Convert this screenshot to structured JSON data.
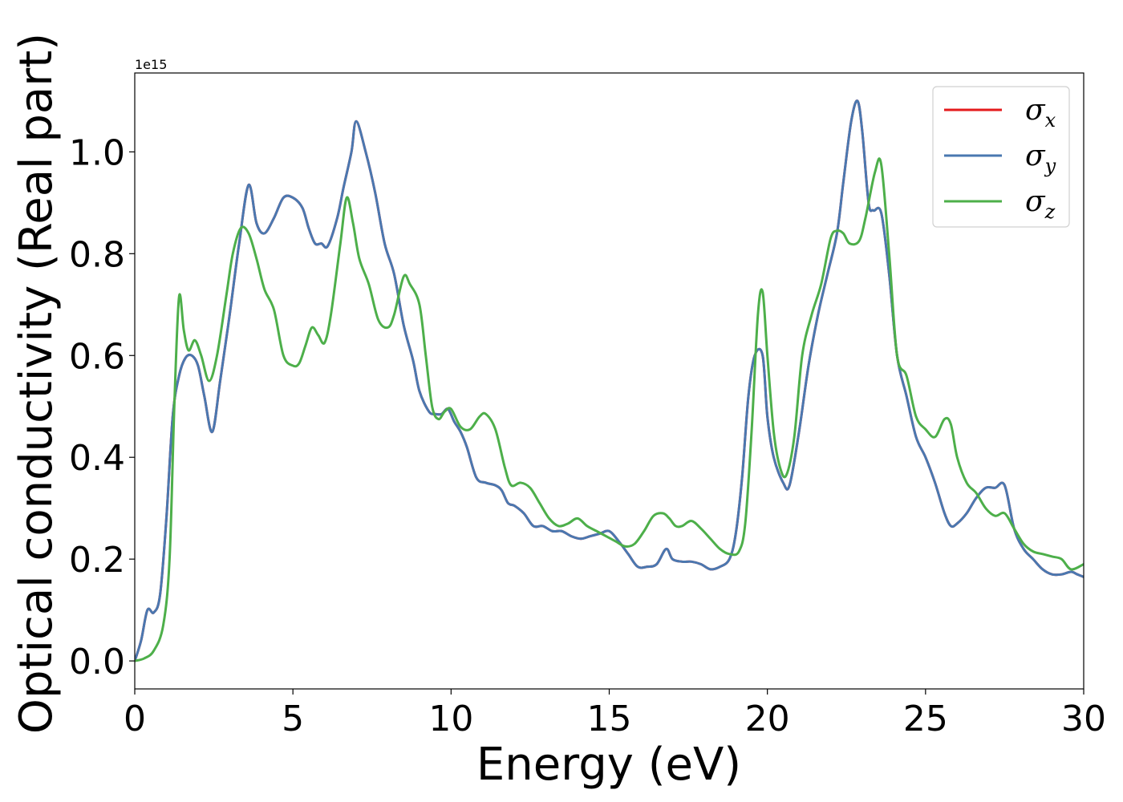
{
  "chart_data": {
    "type": "line",
    "xlabel": "Energy (eV)",
    "ylabel": "Optical conductivity (Real part)",
    "y_offset_label": "1e15",
    "xlim": [
      0,
      30
    ],
    "ylim": [
      -0.055,
      1.155
    ],
    "y_scale_factor": "1e15",
    "x_ticks": [
      0,
      5,
      10,
      15,
      20,
      25,
      30
    ],
    "x_tick_labels": [
      "0",
      "5",
      "10",
      "15",
      "20",
      "25",
      "30"
    ],
    "y_ticks": [
      0.0,
      0.2,
      0.4,
      0.6,
      0.8,
      1.0
    ],
    "y_tick_labels": [
      "0.0",
      "0.2",
      "0.4",
      "0.6",
      "0.8",
      "1.0"
    ],
    "grid": false,
    "legend_position": "top-right",
    "series": [
      {
        "name": "σx",
        "legend_base": "σ",
        "legend_sub": "x",
        "color": "#e41a1c",
        "x": [
          0,
          0.2,
          0.4,
          0.6,
          0.8,
          1.0,
          1.2,
          1.4,
          1.6,
          1.8,
          2.0,
          2.2,
          2.45,
          2.7,
          3.0,
          3.3,
          3.6,
          3.85,
          4.1,
          4.4,
          4.7,
          5.0,
          5.3,
          5.5,
          5.7,
          5.9,
          6.1,
          6.4,
          6.6,
          6.85,
          7.0,
          7.3,
          7.6,
          7.9,
          8.2,
          8.5,
          8.8,
          9.0,
          9.3,
          9.5,
          9.7,
          9.9,
          10.1,
          10.3,
          10.5,
          10.8,
          11.1,
          11.4,
          11.6,
          11.8,
          12.0,
          12.3,
          12.6,
          12.9,
          13.2,
          13.5,
          13.8,
          14.1,
          14.4,
          14.7,
          15.0,
          15.3,
          15.6,
          15.9,
          16.2,
          16.5,
          16.8,
          17.0,
          17.3,
          17.6,
          17.9,
          18.2,
          18.5,
          18.8,
          19.0,
          19.2,
          19.4,
          19.6,
          19.85,
          20.0,
          20.2,
          20.5,
          20.7,
          21.0,
          21.3,
          21.6,
          21.9,
          22.2,
          22.4,
          22.65,
          22.85,
          23.0,
          23.2,
          23.35,
          23.6,
          23.85,
          24.1,
          24.4,
          24.7,
          25.0,
          25.3,
          25.6,
          25.8,
          26.0,
          26.3,
          26.6,
          26.9,
          27.2,
          27.5,
          27.8,
          28.1,
          28.4,
          28.7,
          29.0,
          29.3,
          29.6,
          29.8,
          30.0
        ],
        "values": [
          0.0,
          0.04,
          0.1,
          0.095,
          0.13,
          0.28,
          0.48,
          0.56,
          0.595,
          0.6,
          0.58,
          0.52,
          0.45,
          0.55,
          0.68,
          0.82,
          0.935,
          0.86,
          0.84,
          0.87,
          0.91,
          0.91,
          0.89,
          0.85,
          0.82,
          0.82,
          0.815,
          0.87,
          0.93,
          1.0,
          1.06,
          1.0,
          0.92,
          0.82,
          0.76,
          0.66,
          0.59,
          0.53,
          0.49,
          0.485,
          0.485,
          0.495,
          0.47,
          0.45,
          0.42,
          0.36,
          0.35,
          0.345,
          0.335,
          0.31,
          0.305,
          0.29,
          0.265,
          0.265,
          0.255,
          0.255,
          0.245,
          0.24,
          0.245,
          0.25,
          0.255,
          0.235,
          0.21,
          0.185,
          0.185,
          0.19,
          0.22,
          0.2,
          0.195,
          0.195,
          0.19,
          0.18,
          0.185,
          0.2,
          0.25,
          0.36,
          0.52,
          0.6,
          0.6,
          0.48,
          0.4,
          0.35,
          0.345,
          0.45,
          0.58,
          0.68,
          0.76,
          0.84,
          0.94,
          1.06,
          1.1,
          1.04,
          0.9,
          0.885,
          0.88,
          0.76,
          0.6,
          0.52,
          0.44,
          0.4,
          0.35,
          0.29,
          0.265,
          0.27,
          0.29,
          0.32,
          0.34,
          0.34,
          0.345,
          0.26,
          0.22,
          0.2,
          0.18,
          0.17,
          0.17,
          0.175,
          0.17,
          0.165
        ]
      },
      {
        "name": "σy",
        "legend_base": "σ",
        "legend_sub": "y",
        "color": "#4a78b0",
        "x": [
          0,
          0.2,
          0.4,
          0.6,
          0.8,
          1.0,
          1.2,
          1.4,
          1.6,
          1.8,
          2.0,
          2.2,
          2.45,
          2.7,
          3.0,
          3.3,
          3.6,
          3.85,
          4.1,
          4.4,
          4.7,
          5.0,
          5.3,
          5.5,
          5.7,
          5.9,
          6.1,
          6.4,
          6.6,
          6.85,
          7.0,
          7.3,
          7.6,
          7.9,
          8.2,
          8.5,
          8.8,
          9.0,
          9.3,
          9.5,
          9.7,
          9.9,
          10.1,
          10.3,
          10.5,
          10.8,
          11.1,
          11.4,
          11.6,
          11.8,
          12.0,
          12.3,
          12.6,
          12.9,
          13.2,
          13.5,
          13.8,
          14.1,
          14.4,
          14.7,
          15.0,
          15.3,
          15.6,
          15.9,
          16.2,
          16.5,
          16.8,
          17.0,
          17.3,
          17.6,
          17.9,
          18.2,
          18.5,
          18.8,
          19.0,
          19.2,
          19.4,
          19.6,
          19.85,
          20.0,
          20.2,
          20.5,
          20.7,
          21.0,
          21.3,
          21.6,
          21.9,
          22.2,
          22.4,
          22.65,
          22.85,
          23.0,
          23.2,
          23.35,
          23.6,
          23.85,
          24.1,
          24.4,
          24.7,
          25.0,
          25.3,
          25.6,
          25.8,
          26.0,
          26.3,
          26.6,
          26.9,
          27.2,
          27.5,
          27.8,
          28.1,
          28.4,
          28.7,
          29.0,
          29.3,
          29.6,
          29.8,
          30.0
        ],
        "values": [
          0.0,
          0.04,
          0.1,
          0.095,
          0.13,
          0.28,
          0.48,
          0.56,
          0.595,
          0.6,
          0.58,
          0.52,
          0.45,
          0.55,
          0.68,
          0.82,
          0.935,
          0.86,
          0.84,
          0.87,
          0.91,
          0.91,
          0.89,
          0.85,
          0.82,
          0.82,
          0.815,
          0.87,
          0.93,
          1.0,
          1.06,
          1.0,
          0.92,
          0.82,
          0.76,
          0.66,
          0.59,
          0.53,
          0.49,
          0.485,
          0.485,
          0.495,
          0.47,
          0.45,
          0.42,
          0.36,
          0.35,
          0.345,
          0.335,
          0.31,
          0.305,
          0.29,
          0.265,
          0.265,
          0.255,
          0.255,
          0.245,
          0.24,
          0.245,
          0.25,
          0.255,
          0.235,
          0.21,
          0.185,
          0.185,
          0.19,
          0.22,
          0.2,
          0.195,
          0.195,
          0.19,
          0.18,
          0.185,
          0.2,
          0.25,
          0.36,
          0.52,
          0.6,
          0.6,
          0.48,
          0.4,
          0.35,
          0.345,
          0.45,
          0.58,
          0.68,
          0.76,
          0.84,
          0.94,
          1.06,
          1.1,
          1.04,
          0.9,
          0.885,
          0.88,
          0.76,
          0.6,
          0.52,
          0.44,
          0.4,
          0.35,
          0.29,
          0.265,
          0.27,
          0.29,
          0.32,
          0.34,
          0.34,
          0.345,
          0.26,
          0.22,
          0.2,
          0.18,
          0.17,
          0.17,
          0.175,
          0.17,
          0.165
        ]
      },
      {
        "name": "σz",
        "legend_base": "σ",
        "legend_sub": "z",
        "color": "#4daf4a",
        "x": [
          0,
          0.3,
          0.6,
          0.9,
          1.1,
          1.25,
          1.4,
          1.55,
          1.7,
          1.9,
          2.1,
          2.35,
          2.6,
          2.9,
          3.1,
          3.35,
          3.6,
          3.85,
          4.1,
          4.4,
          4.7,
          5.0,
          5.2,
          5.4,
          5.6,
          5.8,
          6.0,
          6.2,
          6.5,
          6.7,
          6.9,
          7.1,
          7.4,
          7.7,
          8.0,
          8.2,
          8.5,
          8.7,
          9.0,
          9.2,
          9.4,
          9.6,
          9.8,
          10.0,
          10.3,
          10.6,
          10.9,
          11.1,
          11.4,
          11.7,
          11.9,
          12.2,
          12.5,
          12.8,
          13.1,
          13.4,
          13.7,
          14.0,
          14.3,
          14.6,
          14.9,
          15.2,
          15.5,
          15.8,
          16.1,
          16.4,
          16.7,
          16.9,
          17.1,
          17.3,
          17.6,
          17.9,
          18.2,
          18.5,
          18.8,
          19.1,
          19.3,
          19.5,
          19.7,
          19.85,
          20.0,
          20.2,
          20.4,
          20.6,
          20.85,
          21.1,
          21.4,
          21.7,
          22.0,
          22.2,
          22.4,
          22.6,
          22.9,
          23.1,
          23.4,
          23.6,
          23.85,
          24.1,
          24.4,
          24.7,
          25.0,
          25.3,
          25.6,
          25.8,
          26.0,
          26.3,
          26.6,
          26.9,
          27.2,
          27.5,
          27.8,
          28.1,
          28.4,
          28.7,
          29.0,
          29.3,
          29.6,
          30.0
        ],
        "values": [
          0.0,
          0.005,
          0.02,
          0.07,
          0.2,
          0.5,
          0.715,
          0.65,
          0.61,
          0.63,
          0.6,
          0.55,
          0.6,
          0.72,
          0.8,
          0.85,
          0.84,
          0.79,
          0.73,
          0.69,
          0.6,
          0.58,
          0.585,
          0.62,
          0.655,
          0.64,
          0.625,
          0.68,
          0.82,
          0.91,
          0.86,
          0.79,
          0.74,
          0.67,
          0.655,
          0.68,
          0.755,
          0.74,
          0.7,
          0.6,
          0.5,
          0.475,
          0.49,
          0.495,
          0.46,
          0.455,
          0.48,
          0.485,
          0.455,
          0.38,
          0.345,
          0.35,
          0.34,
          0.31,
          0.28,
          0.265,
          0.27,
          0.28,
          0.265,
          0.255,
          0.245,
          0.235,
          0.225,
          0.23,
          0.255,
          0.285,
          0.29,
          0.28,
          0.265,
          0.265,
          0.275,
          0.26,
          0.24,
          0.22,
          0.21,
          0.215,
          0.27,
          0.45,
          0.68,
          0.725,
          0.6,
          0.45,
          0.38,
          0.365,
          0.44,
          0.6,
          0.68,
          0.74,
          0.83,
          0.845,
          0.84,
          0.82,
          0.825,
          0.87,
          0.96,
          0.975,
          0.8,
          0.6,
          0.56,
          0.48,
          0.455,
          0.44,
          0.475,
          0.465,
          0.4,
          0.35,
          0.33,
          0.3,
          0.285,
          0.29,
          0.26,
          0.23,
          0.215,
          0.21,
          0.205,
          0.2,
          0.18,
          0.19
        ]
      }
    ]
  }
}
